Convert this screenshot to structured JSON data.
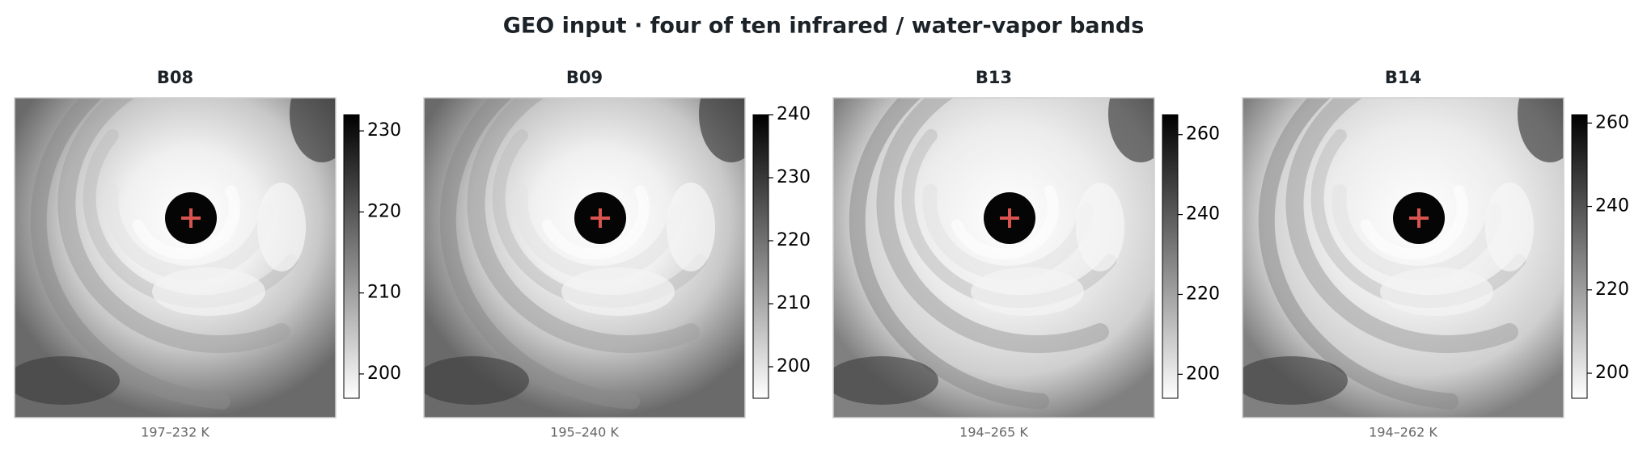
{
  "title": "GEO input · four of ten infrared / water-vapor bands",
  "chart_data": [
    {
      "type": "image",
      "title": "B08",
      "caption": "197–232 K",
      "ylim": [
        197,
        232
      ],
      "yticks": [
        200,
        210,
        220,
        230
      ]
    },
    {
      "type": "image",
      "title": "B09",
      "caption": "195–240 K",
      "ylim": [
        195,
        240
      ],
      "yticks": [
        200,
        210,
        220,
        230,
        240
      ]
    },
    {
      "type": "image",
      "title": "B13",
      "caption": "194–265 K",
      "ylim": [
        194,
        265
      ],
      "yticks": [
        200,
        220,
        240,
        260
      ]
    },
    {
      "type": "image",
      "title": "B14",
      "caption": "194–262 K",
      "ylim": [
        194,
        262
      ],
      "yticks": [
        200,
        220,
        240,
        260
      ]
    }
  ]
}
